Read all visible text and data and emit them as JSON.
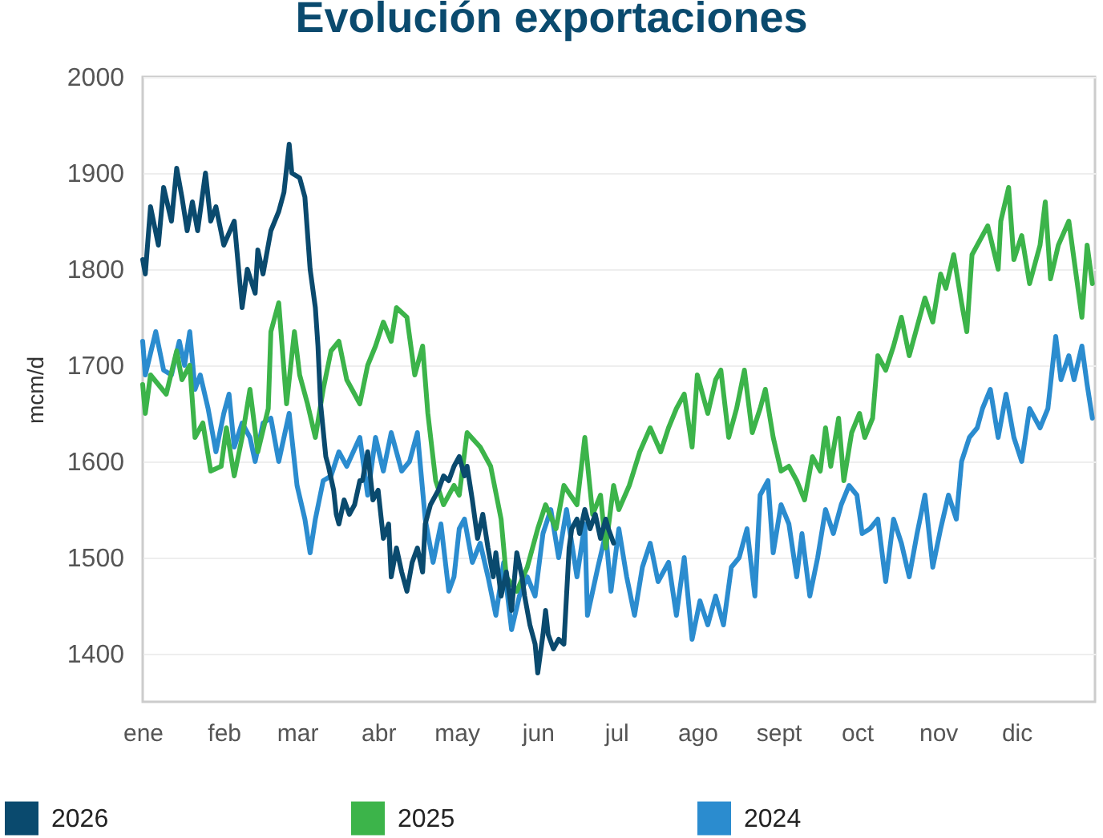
{
  "chart_data": {
    "type": "line",
    "title": "Evolución exportaciones",
    "ylabel": "mcm/d",
    "xlim": [
      "--01-01",
      "--12-31"
    ],
    "ylim": [
      1350,
      2000
    ],
    "xticks": [
      {
        "value": "--01-01",
        "label": "ene"
      },
      {
        "value": "--02-01",
        "label": "feb"
      },
      {
        "value": "--03-01",
        "label": "mar"
      },
      {
        "value": "--04-01",
        "label": "abr"
      },
      {
        "value": "--05-01",
        "label": "may"
      },
      {
        "value": "--06-01",
        "label": "jun"
      },
      {
        "value": "--07-01",
        "label": "jul"
      },
      {
        "value": "--08-01",
        "label": "ago"
      },
      {
        "value": "--09-01",
        "label": "sept"
      },
      {
        "value": "--10-01",
        "label": "oct"
      },
      {
        "value": "--11-01",
        "label": "nov"
      },
      {
        "value": "--12-01",
        "label": "dic"
      }
    ],
    "yticks": [
      1400,
      1500,
      1600,
      1700,
      1800,
      1900,
      2000
    ],
    "grid": "y",
    "legend": "bottom",
    "line_style": "solid",
    "series": [
      {
        "name": "2026",
        "color": "#0a4a6e",
        "x": [
          "--01-01",
          "--01-02",
          "--01-04",
          "--01-07",
          "--01-09",
          "--01-12",
          "--01-14",
          "--01-16",
          "--01-18",
          "--01-20",
          "--01-22",
          "--01-25",
          "--01-27",
          "--01-29",
          "--02-01",
          "--02-05",
          "--02-08",
          "--02-10",
          "--02-13",
          "--02-14",
          "--02-16",
          "--02-19",
          "--02-22",
          "--02-24",
          "--02-26",
          "--02-27",
          "--03-02",
          "--03-04",
          "--03-06",
          "--03-08",
          "--03-09",
          "--03-10",
          "--03-12",
          "--03-13",
          "--03-15",
          "--03-16",
          "--03-17",
          "--03-19",
          "--03-21",
          "--03-23",
          "--03-25",
          "--03-26",
          "--03-28",
          "--03-30",
          "--04-01",
          "--04-03",
          "--04-05",
          "--04-06",
          "--04-08",
          "--04-10",
          "--04-12",
          "--04-14",
          "--04-16",
          "--04-18",
          "--04-19",
          "--04-21",
          "--04-24",
          "--04-26",
          "--04-28",
          "--04-30",
          "--05-02",
          "--05-04",
          "--05-05",
          "--05-07",
          "--05-09",
          "--05-11",
          "--05-13",
          "--05-15",
          "--05-16",
          "--05-18",
          "--05-20",
          "--05-22",
          "--05-24",
          "--05-26",
          "--05-27",
          "--05-29",
          "--05-31",
          "--06-01",
          "--06-03",
          "--06-04",
          "--06-05",
          "--06-07",
          "--06-09",
          "--06-11",
          "--06-12",
          "--06-13",
          "--06-14",
          "--06-16",
          "--06-17",
          "--06-19",
          "--06-21",
          "--06-23",
          "--06-25",
          "--06-27",
          "--06-28",
          "--06-30"
        ],
        "values": [
          1810,
          1795,
          1865,
          1825,
          1885,
          1850,
          1905,
          1875,
          1840,
          1870,
          1840,
          1900,
          1850,
          1865,
          1825,
          1850,
          1760,
          1800,
          1775,
          1820,
          1795,
          1840,
          1860,
          1880,
          1930,
          1900,
          1895,
          1875,
          1800,
          1760,
          1720,
          1660,
          1605,
          1595,
          1570,
          1545,
          1535,
          1560,
          1545,
          1555,
          1580,
          1580,
          1610,
          1560,
          1570,
          1520,
          1535,
          1480,
          1510,
          1485,
          1465,
          1495,
          1510,
          1485,
          1535,
          1555,
          1570,
          1585,
          1580,
          1595,
          1605,
          1585,
          1595,
          1560,
          1520,
          1545,
          1510,
          1480,
          1505,
          1460,
          1485,
          1445,
          1505,
          1480,
          1460,
          1430,
          1410,
          1380,
          1420,
          1445,
          1420,
          1405,
          1415,
          1410,
          1460,
          1510,
          1530,
          1540,
          1525,
          1550,
          1530,
          1545,
          1520,
          1540,
          1530,
          1515
        ]
      },
      {
        "name": "2025",
        "color": "#3cb44a",
        "x": [
          "--01-01",
          "--01-02",
          "--01-04",
          "--01-07",
          "--01-10",
          "--01-14",
          "--01-16",
          "--01-19",
          "--01-21",
          "--01-24",
          "--01-27",
          "--01-31",
          "--02-02",
          "--02-05",
          "--02-08",
          "--02-11",
          "--02-14",
          "--02-18",
          "--02-19",
          "--02-22",
          "--02-25",
          "--02-28",
          "--03-02",
          "--03-05",
          "--03-08",
          "--03-11",
          "--03-14",
          "--03-17",
          "--03-20",
          "--03-25",
          "--03-28",
          "--03-31",
          "--04-03",
          "--04-06",
          "--04-08",
          "--04-12",
          "--04-15",
          "--04-18",
          "--04-20",
          "--04-23",
          "--04-26",
          "--04-30",
          "--05-02",
          "--05-05",
          "--05-10",
          "--05-14",
          "--05-18",
          "--05-20",
          "--05-24",
          "--05-28",
          "--06-01",
          "--06-04",
          "--06-08",
          "--06-11",
          "--06-16",
          "--06-19",
          "--06-22",
          "--06-25",
          "--06-27",
          "--06-30",
          "--07-02",
          "--07-06",
          "--07-10",
          "--07-14",
          "--07-18",
          "--07-21",
          "--07-24",
          "--07-27",
          "--07-30",
          "--08-01",
          "--08-05",
          "--08-08",
          "--08-10",
          "--08-13",
          "--08-16",
          "--08-19",
          "--08-22",
          "--08-25",
          "--08-27",
          "--08-30",
          "--09-02",
          "--09-05",
          "--09-08",
          "--09-11",
          "--09-14",
          "--09-17",
          "--09-19",
          "--09-21",
          "--09-24",
          "--09-26",
          "--09-29",
          "--10-02",
          "--10-04",
          "--10-07",
          "--10-09",
          "--10-12",
          "--10-15",
          "--10-18",
          "--10-21",
          "--10-24",
          "--10-27",
          "--10-30",
          "--11-02",
          "--11-04",
          "--11-07",
          "--11-10",
          "--11-12",
          "--11-14",
          "--11-17",
          "--11-20",
          "--11-24",
          "--11-25",
          "--11-28",
          "--11-30",
          "--12-03",
          "--12-06",
          "--12-10",
          "--12-12",
          "--12-14",
          "--12-17",
          "--12-21",
          "--12-24",
          "--12-26",
          "--12-28",
          "--12-30"
        ],
        "values": [
          1680,
          1650,
          1690,
          1680,
          1670,
          1715,
          1685,
          1700,
          1625,
          1640,
          1590,
          1595,
          1635,
          1585,
          1625,
          1675,
          1610,
          1655,
          1735,
          1765,
          1660,
          1735,
          1690,
          1660,
          1625,
          1675,
          1715,
          1725,
          1685,
          1660,
          1700,
          1720,
          1745,
          1725,
          1760,
          1750,
          1690,
          1720,
          1650,
          1580,
          1555,
          1575,
          1565,
          1630,
          1615,
          1595,
          1540,
          1480,
          1465,
          1490,
          1530,
          1555,
          1530,
          1575,
          1555,
          1625,
          1545,
          1565,
          1510,
          1575,
          1550,
          1575,
          1610,
          1635,
          1610,
          1635,
          1655,
          1670,
          1615,
          1690,
          1650,
          1685,
          1695,
          1625,
          1655,
          1695,
          1630,
          1655,
          1675,
          1625,
          1590,
          1595,
          1580,
          1560,
          1605,
          1590,
          1635,
          1595,
          1645,
          1580,
          1630,
          1650,
          1625,
          1645,
          1710,
          1695,
          1720,
          1750,
          1710,
          1740,
          1770,
          1745,
          1795,
          1780,
          1815,
          1765,
          1735,
          1815,
          1830,
          1845,
          1800,
          1850,
          1885,
          1810,
          1835,
          1785,
          1825,
          1870,
          1790,
          1825,
          1850,
          1790,
          1750,
          1825,
          1785
        ]
      },
      {
        "name": "2024",
        "color": "#2b8ccf",
        "x": [
          "--01-01",
          "--01-02",
          "--01-06",
          "--01-09",
          "--01-12",
          "--01-15",
          "--01-17",
          "--01-19",
          "--01-21",
          "--01-23",
          "--01-26",
          "--01-29",
          "--02-01",
          "--02-03",
          "--02-05",
          "--02-08",
          "--02-11",
          "--02-13",
          "--02-16",
          "--02-19",
          "--02-22",
          "--02-26",
          "--03-01",
          "--03-04",
          "--03-06",
          "--03-08",
          "--03-11",
          "--03-14",
          "--03-17",
          "--03-20",
          "--03-25",
          "--03-28",
          "--03-31",
          "--04-03",
          "--04-06",
          "--04-10",
          "--04-13",
          "--04-16",
          "--04-19",
          "--04-22",
          "--04-25",
          "--04-28",
          "--04-30",
          "--05-02",
          "--05-04",
          "--05-07",
          "--05-10",
          "--05-13",
          "--05-16",
          "--05-19",
          "--05-22",
          "--05-25",
          "--05-28",
          "--05-31",
          "--06-03",
          "--06-06",
          "--06-09",
          "--06-12",
          "--06-16",
          "--06-19",
          "--06-20",
          "--06-24",
          "--06-27",
          "--06-29",
          "--07-02",
          "--07-05",
          "--07-08",
          "--07-11",
          "--07-14",
          "--07-17",
          "--07-21",
          "--07-24",
          "--07-27",
          "--07-30",
          "--08-02",
          "--08-05",
          "--08-08",
          "--08-11",
          "--08-14",
          "--08-17",
          "--08-20",
          "--08-23",
          "--08-25",
          "--08-28",
          "--08-30",
          "--09-02",
          "--09-05",
          "--09-08",
          "--09-10",
          "--09-13",
          "--09-16",
          "--09-19",
          "--09-22",
          "--09-25",
          "--09-28",
          "--10-01",
          "--10-03",
          "--10-06",
          "--10-09",
          "--10-12",
          "--10-15",
          "--10-18",
          "--10-21",
          "--10-24",
          "--10-27",
          "--10-30",
          "--11-02",
          "--11-05",
          "--11-08",
          "--11-10",
          "--11-13",
          "--11-16",
          "--11-18",
          "--11-21",
          "--11-24",
          "--11-27",
          "--11-30",
          "--12-03",
          "--12-06",
          "--12-10",
          "--12-13",
          "--12-16",
          "--12-18",
          "--12-21",
          "--12-23",
          "--12-26",
          "--12-28",
          "--12-30"
        ],
        "values": [
          1725,
          1690,
          1735,
          1695,
          1690,
          1725,
          1700,
          1735,
          1675,
          1690,
          1655,
          1610,
          1650,
          1670,
          1615,
          1640,
          1625,
          1600,
          1640,
          1645,
          1600,
          1650,
          1575,
          1540,
          1505,
          1540,
          1580,
          1585,
          1610,
          1595,
          1625,
          1565,
          1625,
          1590,
          1630,
          1590,
          1600,
          1630,
          1540,
          1495,
          1535,
          1465,
          1480,
          1530,
          1540,
          1495,
          1515,
          1480,
          1440,
          1495,
          1425,
          1460,
          1480,
          1460,
          1525,
          1550,
          1500,
          1550,
          1480,
          1535,
          1440,
          1490,
          1525,
          1465,
          1530,
          1480,
          1440,
          1490,
          1515,
          1475,
          1495,
          1440,
          1500,
          1415,
          1455,
          1430,
          1460,
          1430,
          1490,
          1500,
          1530,
          1460,
          1565,
          1580,
          1505,
          1555,
          1535,
          1480,
          1525,
          1460,
          1500,
          1550,
          1525,
          1555,
          1575,
          1565,
          1525,
          1530,
          1540,
          1475,
          1540,
          1515,
          1480,
          1525,
          1565,
          1490,
          1530,
          1565,
          1540,
          1600,
          1625,
          1635,
          1655,
          1675,
          1625,
          1670,
          1625,
          1600,
          1655,
          1635,
          1655,
          1730,
          1685,
          1710,
          1685,
          1720,
          1680,
          1645
        ]
      }
    ]
  }
}
